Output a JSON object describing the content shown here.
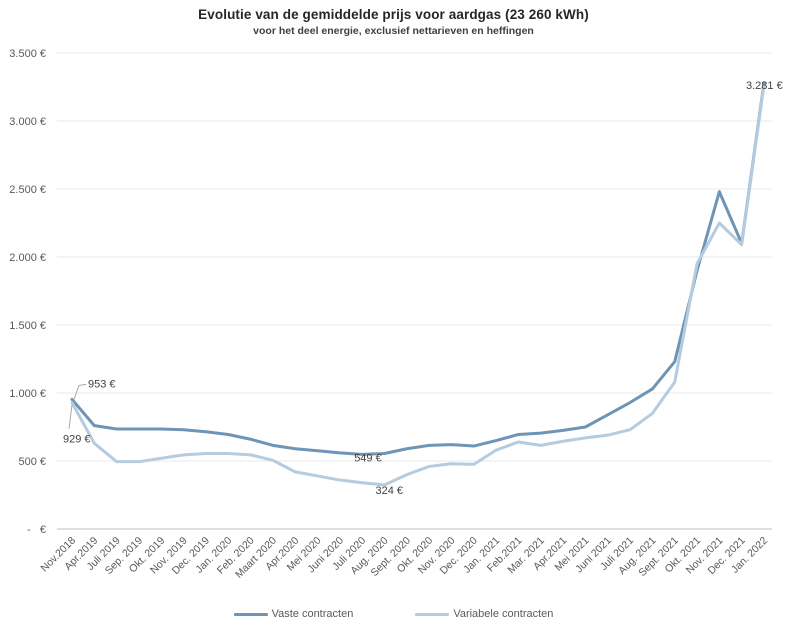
{
  "chart_data": {
    "type": "line",
    "title": "Evolutie van de gemiddelde prijs voor aardgas (23 260 kWh)",
    "subtitle": "voor het deel energie, exclusief nettarieven en heffingen",
    "grid": true,
    "legend_position": "bottom",
    "ylim": [
      0,
      3500
    ],
    "ytick_step": 500,
    "ytick_labels": [
      "-   €",
      "500 €",
      "1.000 €",
      "1.500 €",
      "2.000 €",
      "2.500 €",
      "3.000 €",
      "3.500 €"
    ],
    "categories": [
      "Nov.2018",
      "Apr.2019",
      "Juli 2019",
      "Sep. 2019",
      "Okt. 2019",
      "Nov. 2019",
      "Dec. 2019",
      "Jan. 2020",
      "Feb. 2020",
      "Maart 2020",
      "Apr.2020",
      "Mei 2020",
      "Juni 2020",
      "Juli 2020",
      "Aug. 2020",
      "Sept. 2020",
      "Okt. 2020",
      "Nov. 2020",
      "Dec. 2020",
      "Jan. 2021",
      "Feb.2021",
      "Mar. 2021",
      "Apr.2021",
      "Mei 2021",
      "Juni 2021",
      "Juli 2021",
      "Aug. 2021",
      "Sept. 2021",
      "Okt. 2021",
      "Nov. 2021",
      "Dec. 2021",
      "Jan. 2022"
    ],
    "series": [
      {
        "name": "Vaste contracten",
        "color": "#6e94b6",
        "values": [
          953,
          760,
          735,
          735,
          735,
          730,
          715,
          695,
          660,
          615,
          590,
          575,
          560,
          549,
          555,
          590,
          615,
          620,
          610,
          650,
          695,
          705,
          725,
          750,
          840,
          930,
          1030,
          1230,
          1900,
          2480,
          2100,
          3281
        ]
      },
      {
        "name": "Variabele contracten",
        "color": "#b5cbdf",
        "values": [
          929,
          630,
          495,
          495,
          520,
          545,
          555,
          555,
          545,
          505,
          420,
          390,
          360,
          340,
          324,
          400,
          460,
          480,
          475,
          580,
          640,
          615,
          645,
          670,
          690,
          730,
          850,
          1080,
          1950,
          2250,
          2090,
          3266
        ]
      }
    ],
    "annotations": [
      {
        "label": "953 €",
        "series": 0,
        "index": 0
      },
      {
        "label": "929 €",
        "series": 1,
        "index": 0
      },
      {
        "label": "549 €",
        "series": 0,
        "index": 13
      },
      {
        "label": "324 €",
        "series": 1,
        "index": 14
      },
      {
        "label": "3.281 €",
        "series": 0,
        "index": 31
      }
    ],
    "colors": {
      "gridline": "#e9e9e9",
      "axis_line": "#c0c0c0",
      "tick_text": "#595959",
      "annotation_text": "#404040",
      "leader_line": "#a6a6a6"
    }
  },
  "legend": {
    "items": [
      {
        "label": "Vaste contracten"
      },
      {
        "label": "Variabele contracten"
      }
    ]
  }
}
